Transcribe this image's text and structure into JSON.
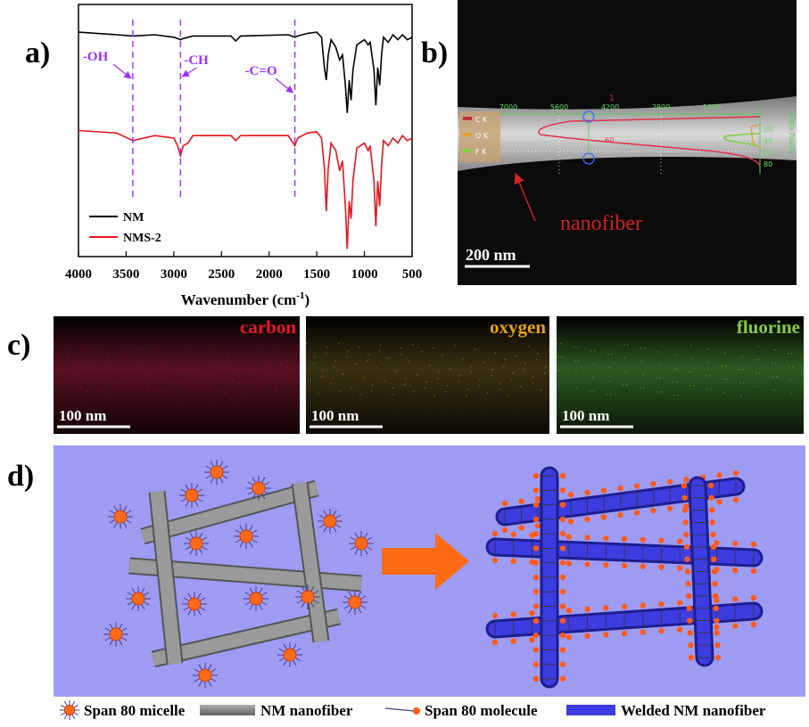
{
  "chart_data": {
    "type": "line",
    "xlabel": {
      "text": "Wavenumber (cm",
      "sup": "-1",
      "close": ")"
    },
    "xlim": [
      4000,
      500
    ],
    "xticks": [
      4000,
      3500,
      3000,
      2500,
      2000,
      1500,
      1000,
      500
    ],
    "ylim": [
      0,
      100
    ],
    "legend": "lower left",
    "series": [
      {
        "name": "NM",
        "color": "#000000",
        "x": [
          4000,
          3600,
          3430,
          3200,
          3000,
          2960,
          2930,
          2900,
          2850,
          2800,
          2400,
          2350,
          2300,
          1800,
          1730,
          1700,
          1600,
          1500,
          1450,
          1420,
          1400,
          1380,
          1350,
          1300,
          1260,
          1230,
          1200,
          1180,
          1160,
          1140,
          1120,
          1080,
          1000,
          960,
          940,
          900,
          880,
          860,
          840,
          820,
          800,
          750,
          700,
          650,
          600,
          550,
          500
        ],
        "values": [
          89,
          88,
          87.5,
          88,
          87,
          86.5,
          86,
          86.5,
          87,
          87.5,
          87.5,
          85.5,
          87.5,
          88,
          87,
          87.5,
          88.5,
          89,
          87,
          75,
          70,
          80,
          86,
          83,
          78,
          80,
          68,
          57,
          70,
          62,
          74,
          84,
          86,
          84,
          85,
          74,
          60,
          75,
          68,
          80,
          87,
          85,
          88,
          86,
          88,
          86,
          87
        ]
      },
      {
        "name": "NMS-2",
        "color": "#e8141c",
        "x": [
          4000,
          3600,
          3430,
          3200,
          3000,
          2960,
          2930,
          2900,
          2850,
          2800,
          2400,
          2350,
          2300,
          1800,
          1730,
          1700,
          1600,
          1500,
          1450,
          1420,
          1400,
          1380,
          1350,
          1300,
          1260,
          1230,
          1200,
          1180,
          1160,
          1140,
          1120,
          1080,
          1000,
          960,
          940,
          900,
          880,
          860,
          840,
          820,
          800,
          750,
          700,
          650,
          600,
          550,
          500
        ],
        "values": [
          50,
          49,
          46,
          48,
          47,
          44,
          40,
          44,
          45,
          48,
          48,
          46,
          48,
          48,
          44,
          47,
          49,
          49.5,
          47,
          35,
          18,
          35,
          45,
          42,
          34,
          38,
          20,
          3,
          22,
          15,
          30,
          43,
          45,
          42,
          44,
          30,
          12,
          30,
          20,
          36,
          46,
          44,
          47,
          45,
          48,
          46,
          47
        ]
      }
    ],
    "annotations": [
      {
        "x": 3430,
        "label": "-OH"
      },
      {
        "x": 2930,
        "label": "-CH"
      },
      {
        "x": 1730,
        "label": "-C=O"
      }
    ],
    "annotation_color": "#9b30ff"
  },
  "panel_labels": [
    "a)",
    "b)",
    "c)",
    "d)"
  ],
  "eds_linescan": {
    "axis_ticks": [
      "7000",
      "5600",
      "4200",
      "2800",
      "1400"
    ],
    "marker": "1",
    "value_label": "60",
    "elements": [
      "C K",
      "O K",
      "F K"
    ],
    "right_ticks": [
      "20",
      "40",
      "60",
      "80"
    ],
    "right_label": "Data Points",
    "arrow_label": "nanofiber",
    "scale_bar": "200 nm"
  },
  "eds_maps": [
    {
      "label": "carbon",
      "color": "#e5192b",
      "scale_bar": "100 nm"
    },
    {
      "label": "oxygen",
      "color": "#e8a21c",
      "scale_bar": "100 nm"
    },
    {
      "label": "fluorine",
      "color": "#8cc84b",
      "scale_bar": "100 nm"
    }
  ],
  "schematic": {
    "legend": [
      "Span 80 micelle",
      "NM nanofiber",
      "Span 80 molecule",
      "Welded NM nanofiber"
    ]
  }
}
